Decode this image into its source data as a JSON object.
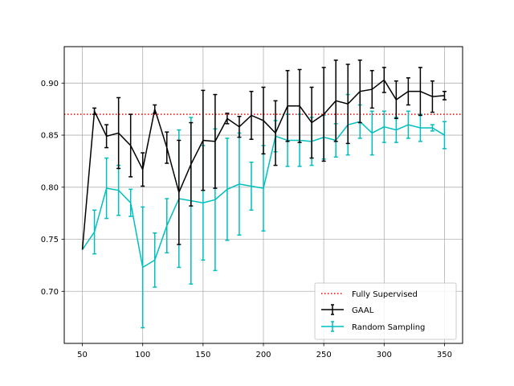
{
  "chart_data": {
    "type": "line",
    "title": "",
    "xlabel": "",
    "ylabel": "",
    "xlim": [
      35,
      365
    ],
    "ylim": [
      0.65,
      0.935
    ],
    "xticks": [
      50,
      100,
      150,
      200,
      250,
      300,
      350
    ],
    "yticks": [
      0.7,
      0.75,
      0.8,
      0.85,
      0.9
    ],
    "ytick_labels": [
      "0.70",
      "0.75",
      "0.80",
      "0.85",
      "0.90"
    ],
    "grid": true,
    "legend_position": "bottom-right",
    "baseline": {
      "name": "Fully Supervised",
      "y": 0.87,
      "color": "#ff0000",
      "style": "dotted"
    },
    "x": [
      50,
      60,
      70,
      80,
      90,
      100,
      110,
      120,
      130,
      140,
      150,
      160,
      170,
      180,
      190,
      200,
      210,
      220,
      230,
      240,
      250,
      260,
      270,
      280,
      290,
      300,
      310,
      320,
      330,
      340,
      350
    ],
    "series": [
      {
        "name": "GAAL",
        "color": "#000000",
        "values": [
          0.74,
          0.873,
          0.849,
          0.852,
          0.84,
          0.817,
          0.875,
          0.838,
          0.795,
          0.822,
          0.845,
          0.844,
          0.866,
          0.858,
          0.869,
          0.864,
          0.852,
          0.878,
          0.878,
          0.862,
          0.87,
          0.883,
          0.88,
          0.892,
          0.894,
          0.903,
          0.884,
          0.892,
          0.892,
          0.887,
          0.888
        ],
        "errors": [
          0.0,
          0.003,
          0.011,
          0.034,
          0.03,
          0.016,
          0.004,
          0.015,
          0.05,
          0.04,
          0.048,
          0.045,
          0.005,
          0.01,
          0.023,
          0.032,
          0.031,
          0.034,
          0.035,
          0.034,
          0.045,
          0.039,
          0.038,
          0.03,
          0.018,
          0.012,
          0.018,
          0.013,
          0.023,
          0.015,
          0.004
        ]
      },
      {
        "name": "Random Sampling",
        "color": "#00bfbf",
        "values": [
          0.74,
          0.757,
          0.799,
          0.797,
          0.785,
          0.723,
          0.73,
          0.763,
          0.789,
          0.787,
          0.785,
          0.788,
          0.798,
          0.803,
          0.801,
          0.799,
          0.849,
          0.845,
          0.845,
          0.844,
          0.848,
          0.845,
          0.86,
          0.863,
          0.852,
          0.858,
          0.855,
          0.86,
          0.857,
          0.857,
          0.85
        ],
        "errors": [
          0.0,
          0.021,
          0.029,
          0.024,
          0.013,
          0.058,
          0.026,
          0.026,
          0.066,
          0.08,
          0.055,
          0.068,
          0.049,
          0.049,
          0.023,
          0.041,
          0.015,
          0.025,
          0.025,
          0.023,
          0.021,
          0.016,
          0.029,
          0.016,
          0.021,
          0.015,
          0.012,
          0.013,
          0.013,
          0.003,
          0.013
        ]
      }
    ]
  }
}
